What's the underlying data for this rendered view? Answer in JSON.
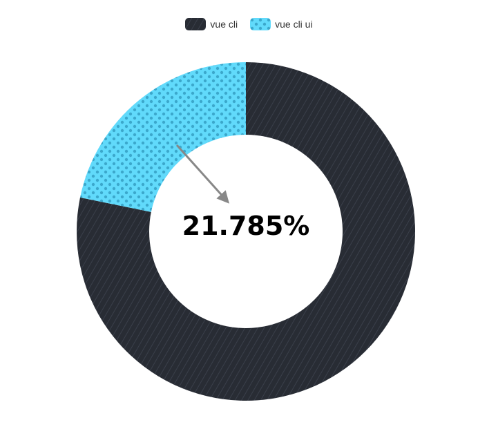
{
  "chart_data": {
    "type": "pie",
    "variant": "donut",
    "series": [
      {
        "name": "vue cli",
        "value": 78.215,
        "color": "#282c34",
        "pattern": "diagonal-stripes"
      },
      {
        "name": "vue cli ui",
        "value": 21.785,
        "color": "#61dafb",
        "pattern": "dots"
      }
    ],
    "center_label": "21.785%",
    "legend_position": "top-center",
    "annotation": "arrow"
  }
}
